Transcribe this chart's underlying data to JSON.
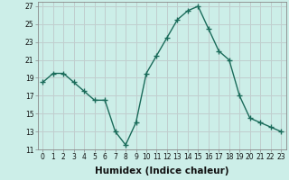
{
  "x": [
    0,
    1,
    2,
    3,
    4,
    5,
    6,
    7,
    8,
    9,
    10,
    11,
    12,
    13,
    14,
    15,
    16,
    17,
    18,
    19,
    20,
    21,
    22,
    23
  ],
  "y": [
    18.5,
    19.5,
    19.5,
    18.5,
    17.5,
    16.5,
    16.5,
    13.0,
    11.5,
    14.0,
    19.5,
    21.5,
    23.5,
    25.5,
    26.5,
    27.0,
    24.5,
    22.0,
    21.0,
    17.0,
    14.5,
    14.0,
    13.5,
    13.0
  ],
  "line_color": "#1a6b5a",
  "marker": "+",
  "marker_size": 4,
  "marker_linewidth": 1.0,
  "bg_color": "#cceee8",
  "grid_color": "#c0cece",
  "axis_color": "#888888",
  "xlabel": "Humidex (Indice chaleur)",
  "ylabel": "",
  "xlim": [
    -0.5,
    23.5
  ],
  "ylim": [
    11,
    27.5
  ],
  "yticks": [
    11,
    13,
    15,
    17,
    19,
    21,
    23,
    25,
    27
  ],
  "xtick_labels": [
    "0",
    "1",
    "2",
    "3",
    "4",
    "5",
    "6",
    "7",
    "8",
    "9",
    "10",
    "11",
    "12",
    "13",
    "14",
    "15",
    "16",
    "17",
    "18",
    "19",
    "20",
    "21",
    "22",
    "23"
  ],
  "tick_fontsize": 5.5,
  "xlabel_fontsize": 7.5
}
